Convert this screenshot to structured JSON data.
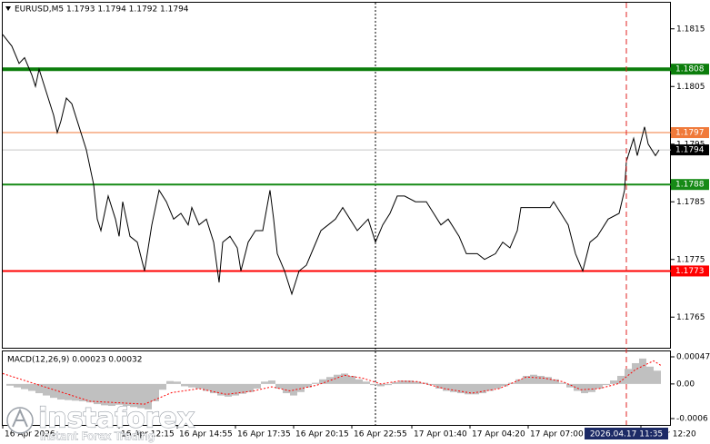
{
  "chart_data": [
    {
      "type": "line",
      "title": "EURUSD,M5  1.1793 1.1794 1.1792 1.1794",
      "color": "#000000",
      "x": [
        0,
        5,
        9,
        12,
        16,
        18,
        20,
        24,
        28,
        30,
        32,
        35,
        38,
        42,
        46,
        50,
        52,
        54,
        58,
        62,
        64,
        66,
        70,
        74,
        78,
        82,
        86,
        90,
        94,
        98,
        102,
        104,
        108,
        112,
        116,
        119,
        121,
        125,
        129,
        131,
        135,
        139,
        143,
        147,
        149,
        151,
        155,
        159,
        163,
        167,
        171,
        175,
        179,
        183,
        187,
        191,
        195,
        201,
        205,
        209,
        213,
        217,
        221,
        227,
        233,
        237,
        241,
        245,
        251,
        255,
        261,
        265,
        271,
        275,
        279,
        283,
        285,
        293,
        301,
        303,
        307,
        311,
        315,
        319,
        323,
        327,
        333,
        339,
        342,
        343,
        347,
        349,
        353,
        355,
        359,
        361
      ],
      "values": [
        1.1814,
        1.1812,
        1.1809,
        1.181,
        1.1807,
        1.1805,
        1.1808,
        1.1804,
        1.18,
        1.1797,
        1.1799,
        1.1803,
        1.1802,
        1.1798,
        1.1794,
        1.1788,
        1.1782,
        1.178,
        1.1786,
        1.1782,
        1.1779,
        1.1785,
        1.1779,
        1.1778,
        1.1773,
        1.1781,
        1.1787,
        1.1785,
        1.1782,
        1.1783,
        1.1781,
        1.1784,
        1.1781,
        1.1782,
        1.1778,
        1.1771,
        1.1778,
        1.1779,
        1.1777,
        1.1773,
        1.1778,
        1.178,
        1.178,
        1.1787,
        1.1782,
        1.1776,
        1.1773,
        1.1769,
        1.1773,
        1.1774,
        1.1777,
        1.178,
        1.1781,
        1.1782,
        1.1784,
        1.1782,
        1.178,
        1.1782,
        1.1778,
        1.1781,
        1.1783,
        1.1786,
        1.1786,
        1.1785,
        1.1785,
        1.1783,
        1.1781,
        1.1782,
        1.1779,
        1.1776,
        1.1776,
        1.1775,
        1.1776,
        1.1778,
        1.1777,
        1.178,
        1.1784,
        1.1784,
        1.1784,
        1.1785,
        1.1783,
        1.1781,
        1.1776,
        1.1773,
        1.1778,
        1.1779,
        1.1782,
        1.1783,
        1.1787,
        1.1792,
        1.1796,
        1.1793,
        1.1798,
        1.1795,
        1.1793,
        1.1794
      ],
      "xlim": [
        0,
        367.5
      ],
      "xticks": [
        {
          "value": 0,
          "label": "16 Apr 2026"
        },
        {
          "value": 64,
          "label": "16 Apr 12:15"
        },
        {
          "value": 96,
          "label": "16 Apr 14:55"
        },
        {
          "value": 128,
          "label": "16 Apr 17:35"
        },
        {
          "value": 160,
          "label": "16 Apr 20:15"
        },
        {
          "value": 192,
          "label": "16 Apr 22:55"
        },
        {
          "value": 225,
          "label": "17 Apr 01:40"
        },
        {
          "value": 257,
          "label": "17 Apr 04:20"
        },
        {
          "value": 289,
          "label": "17 Apr 07:00"
        },
        {
          "value": 351,
          "label": "17 Apr 12:20"
        }
      ],
      "ylim": [
        1.176,
        1.182
      ],
      "yticks": [
        1.1765,
        1.1775,
        1.1785,
        1.1795,
        1.1805,
        1.1815
      ],
      "levels": [
        {
          "value": 1.1808,
          "color": "#0b7d0b"
        },
        {
          "value": 1.1797,
          "color": "#f07a3a"
        },
        {
          "value": 1.1788,
          "color": "#168a16"
        },
        {
          "value": 1.1773,
          "color": "#ff0000"
        }
      ],
      "current_price": 1.1794,
      "crosshair": {
        "x": 343,
        "label": "2026.04.17 11:35"
      },
      "day_separator": 205
    },
    {
      "type": "macd",
      "title": "MACD(12,26,9) 0.00023 0.00032",
      "color": "#c0c0c0",
      "x": [
        0,
        4,
        8,
        12,
        16,
        20,
        24,
        28,
        32,
        36,
        40,
        44,
        48,
        52,
        56,
        60,
        64,
        68,
        72,
        76,
        80,
        84,
        88,
        92,
        96,
        100,
        104,
        108,
        112,
        116,
        120,
        124,
        128,
        132,
        136,
        140,
        144,
        148,
        152,
        156,
        160,
        164,
        168,
        172,
        176,
        180,
        184,
        188,
        192,
        196,
        200,
        204,
        208,
        212,
        216,
        220,
        224,
        228,
        232,
        236,
        240,
        244,
        248,
        252,
        256,
        260,
        264,
        268,
        272,
        276,
        280,
        284,
        288,
        292,
        296,
        300,
        304,
        308,
        312,
        316,
        320,
        324,
        328,
        332,
        336,
        340,
        344,
        348,
        352,
        356,
        360
      ],
      "values": [
        0,
        -3e-05,
        -6e-05,
        -9e-05,
        -0.00012,
        -0.00016,
        -0.0002,
        -0.00024,
        -0.00027,
        -0.00028,
        -0.00029,
        -0.0003,
        -0.00032,
        -0.00035,
        -0.00037,
        -0.00038,
        -0.00036,
        -0.00038,
        -0.0004,
        -0.00042,
        -0.00044,
        -0.0003,
        -0.0001,
        5e-05,
        4e-05,
        -4e-05,
        -6e-05,
        -8e-05,
        -0.00012,
        -0.00016,
        -0.0002,
        -0.00022,
        -0.0002,
        -0.00017,
        -0.00014,
        -8e-05,
        4e-05,
        6e-05,
        -8e-05,
        -0.00016,
        -0.0002,
        -0.00014,
        -6e-05,
        2e-05,
        8e-05,
        0.00012,
        0.00016,
        0.00018,
        0.00014,
        8e-05,
        4e-05,
        -2e-05,
        -4e-05,
        -2e-05,
        3e-05,
        6e-05,
        6e-05,
        4e-05,
        2e-05,
        -2e-05,
        -8e-05,
        -0.00012,
        -0.00014,
        -0.00016,
        -0.00018,
        -0.00018,
        -0.00016,
        -0.00012,
        -8e-05,
        -4e-05,
        2e-05,
        8e-05,
        0.00014,
        0.00016,
        0.00014,
        0.00012,
        8e-05,
        2e-05,
        -6e-05,
        -0.00012,
        -0.00016,
        -0.00014,
        -8e-05,
        -2e-05,
        6e-05,
        0.00014,
        0.00026,
        0.00036,
        0.00044,
        0.0003,
        0.00023
      ],
      "signal": {
        "color": "#ff0000",
        "x": [
          0,
          48,
          78,
          93,
          108,
          123,
          138,
          148,
          158,
          173,
          188,
          198,
          208,
          218,
          228,
          243,
          258,
          273,
          288,
          298,
          308,
          318,
          328,
          338,
          348,
          358,
          362
        ],
        "values": [
          0.00018,
          -0.0003,
          -0.00035,
          -0.00015,
          -8e-05,
          -0.00018,
          -0.00012,
          -5e-05,
          -0.00012,
          -2e-05,
          0.00015,
          0.0001,
          0,
          5e-05,
          4e-05,
          -8e-05,
          -0.00016,
          -8e-05,
          0.00012,
          0.0001,
          4e-05,
          -0.0001,
          -8e-05,
          0,
          0.00025,
          0.0004,
          0.00032
        ]
      },
      "xlim": [
        0,
        367.5
      ],
      "ylim": [
        -0.00071,
        0.00058
      ],
      "yticks": [
        -0.0006,
        {
          "value": 0,
          "label": "0.00"
        },
        0.00047
      ]
    }
  ],
  "watermark": {
    "brand": "instaforex",
    "tagline": "Instant Forex Trading"
  }
}
